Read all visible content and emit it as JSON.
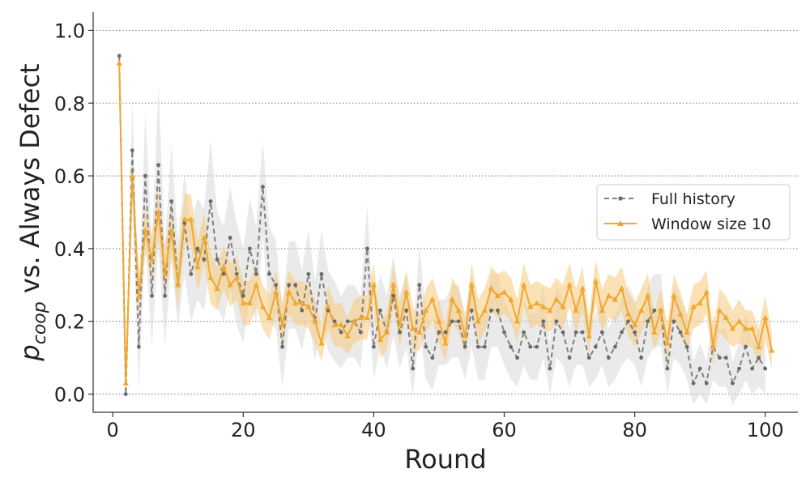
{
  "chart_data": {
    "type": "line",
    "xlabel": "Round",
    "ylabel_main": "p",
    "ylabel_sub": "coop",
    "ylabel_rest": " vs. Always Defect",
    "xlim": [
      -3,
      105
    ],
    "ylim": [
      -0.05,
      1.05
    ],
    "xticks": [
      0,
      20,
      40,
      60,
      80,
      100
    ],
    "yticks": [
      0.0,
      0.2,
      0.4,
      0.6,
      0.8,
      1.0
    ],
    "xtick_labels": [
      "0",
      "20",
      "40",
      "60",
      "80",
      "100"
    ],
    "ytick_labels": [
      "0.0",
      "0.2",
      "0.4",
      "0.6",
      "0.8",
      "1.0"
    ],
    "grid": "horizontal dotted",
    "legend_position": "center-right",
    "colors": {
      "full_history": "#808080",
      "full_band": "#d8d8d8",
      "window": "#f0a830",
      "window_band": "#f5c97a"
    },
    "series": [
      {
        "name": "Full history",
        "style": "dashed-circle",
        "values": [
          0.93,
          0.0,
          0.67,
          0.13,
          0.6,
          0.27,
          0.63,
          0.27,
          0.53,
          0.3,
          0.47,
          0.33,
          0.4,
          0.37,
          0.53,
          0.37,
          0.33,
          0.43,
          0.33,
          0.27,
          0.4,
          0.33,
          0.57,
          0.33,
          0.3,
          0.13,
          0.3,
          0.3,
          0.23,
          0.33,
          0.2,
          0.33,
          0.23,
          0.2,
          0.17,
          0.2,
          0.2,
          0.17,
          0.4,
          0.13,
          0.23,
          0.17,
          0.27,
          0.17,
          0.23,
          0.07,
          0.3,
          0.13,
          0.1,
          0.17,
          0.17,
          0.2,
          0.2,
          0.13,
          0.23,
          0.13,
          0.13,
          0.23,
          0.23,
          0.17,
          0.13,
          0.1,
          0.17,
          0.13,
          0.13,
          0.2,
          0.07,
          0.2,
          0.17,
          0.1,
          0.17,
          0.17,
          0.1,
          0.13,
          0.17,
          0.1,
          0.13,
          0.17,
          0.2,
          0.17,
          0.1,
          0.2,
          0.23,
          0.23,
          0.07,
          0.2,
          0.17,
          0.13,
          0.03,
          0.07,
          0.03,
          0.13,
          0.1,
          0.1,
          0.03,
          0.07,
          0.13,
          0.07,
          0.1,
          0.07
        ],
        "band": [
          0.04,
          0.03,
          0.14,
          0.12,
          0.18,
          0.14,
          0.22,
          0.14,
          0.16,
          0.12,
          0.14,
          0.13,
          0.14,
          0.14,
          0.17,
          0.13,
          0.13,
          0.14,
          0.14,
          0.13,
          0.14,
          0.13,
          0.13,
          0.13,
          0.12,
          0.11,
          0.12,
          0.12,
          0.11,
          0.12,
          0.11,
          0.12,
          0.11,
          0.11,
          0.1,
          0.1,
          0.1,
          0.1,
          0.12,
          0.09,
          0.1,
          0.1,
          0.11,
          0.1,
          0.1,
          0.08,
          0.11,
          0.09,
          0.09,
          0.09,
          0.09,
          0.1,
          0.1,
          0.09,
          0.1,
          0.09,
          0.09,
          0.1,
          0.1,
          0.09,
          0.09,
          0.08,
          0.09,
          0.09,
          0.09,
          0.1,
          0.07,
          0.1,
          0.09,
          0.08,
          0.09,
          0.09,
          0.08,
          0.09,
          0.09,
          0.08,
          0.09,
          0.09,
          0.1,
          0.09,
          0.08,
          0.1,
          0.1,
          0.1,
          0.07,
          0.1,
          0.09,
          0.09,
          0.06,
          0.07,
          0.06,
          0.09,
          0.08,
          0.08,
          0.06,
          0.07,
          0.09,
          0.07,
          0.08,
          0.07
        ]
      },
      {
        "name": "Window size 10",
        "style": "solid-triangle",
        "values": [
          0.91,
          0.03,
          0.6,
          0.27,
          0.45,
          0.37,
          0.5,
          0.33,
          0.45,
          0.3,
          0.48,
          0.48,
          0.35,
          0.43,
          0.32,
          0.29,
          0.35,
          0.3,
          0.32,
          0.25,
          0.25,
          0.3,
          0.24,
          0.21,
          0.28,
          0.19,
          0.28,
          0.25,
          0.25,
          0.24,
          0.2,
          0.14,
          0.24,
          0.19,
          0.19,
          0.16,
          0.2,
          0.21,
          0.21,
          0.3,
          0.15,
          0.17,
          0.3,
          0.19,
          0.28,
          0.18,
          0.17,
          0.23,
          0.26,
          0.2,
          0.14,
          0.26,
          0.23,
          0.16,
          0.3,
          0.2,
          0.23,
          0.29,
          0.27,
          0.28,
          0.26,
          0.2,
          0.3,
          0.24,
          0.25,
          0.24,
          0.23,
          0.26,
          0.24,
          0.3,
          0.23,
          0.29,
          0.16,
          0.31,
          0.23,
          0.27,
          0.26,
          0.29,
          0.22,
          0.19,
          0.23,
          0.27,
          0.17,
          0.23,
          0.14,
          0.27,
          0.22,
          0.17,
          0.24,
          0.25,
          0.28,
          0.13,
          0.23,
          0.21,
          0.18,
          0.2,
          0.18,
          0.18,
          0.13,
          0.21,
          0.12
        ],
        "band": [
          0.03,
          0.03,
          0.05,
          0.06,
          0.06,
          0.07,
          0.07,
          0.07,
          0.07,
          0.07,
          0.07,
          0.07,
          0.07,
          0.07,
          0.07,
          0.06,
          0.06,
          0.06,
          0.06,
          0.06,
          0.06,
          0.06,
          0.06,
          0.06,
          0.06,
          0.06,
          0.06,
          0.06,
          0.06,
          0.06,
          0.06,
          0.05,
          0.06,
          0.06,
          0.06,
          0.05,
          0.06,
          0.06,
          0.06,
          0.06,
          0.05,
          0.05,
          0.06,
          0.06,
          0.06,
          0.06,
          0.05,
          0.06,
          0.06,
          0.06,
          0.05,
          0.06,
          0.06,
          0.05,
          0.06,
          0.06,
          0.06,
          0.06,
          0.06,
          0.06,
          0.06,
          0.06,
          0.06,
          0.06,
          0.06,
          0.06,
          0.06,
          0.06,
          0.06,
          0.06,
          0.06,
          0.06,
          0.05,
          0.06,
          0.06,
          0.06,
          0.06,
          0.06,
          0.06,
          0.06,
          0.06,
          0.06,
          0.05,
          0.06,
          0.05,
          0.06,
          0.06,
          0.05,
          0.06,
          0.06,
          0.06,
          0.05,
          0.06,
          0.06,
          0.05,
          0.06,
          0.05,
          0.05,
          0.05,
          0.06,
          0.05
        ]
      }
    ]
  }
}
